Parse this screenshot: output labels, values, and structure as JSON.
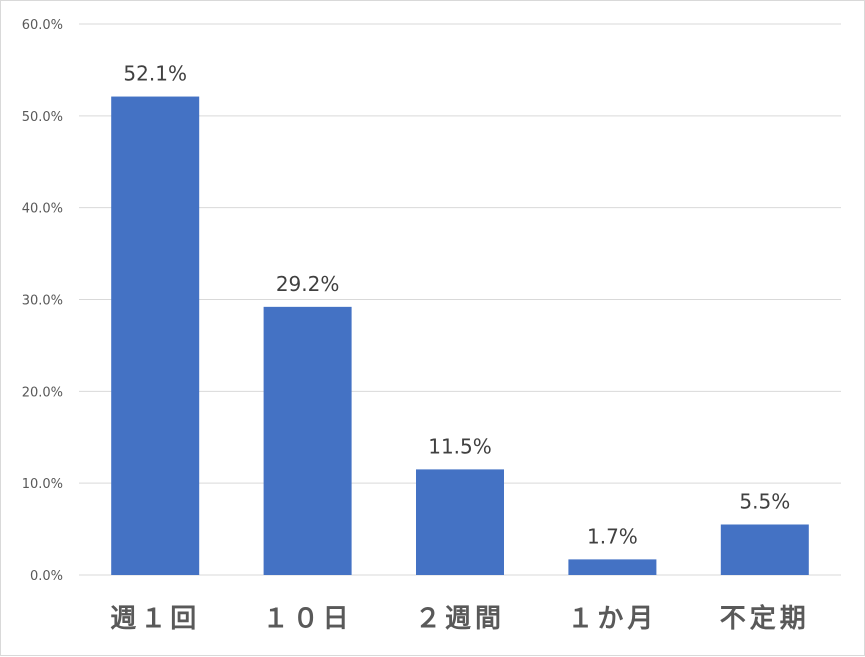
{
  "chart_data": {
    "type": "bar",
    "categories": [
      "週１回",
      "１０日",
      "２週間",
      "１か月",
      "不定期"
    ],
    "values": [
      52.1,
      29.2,
      11.5,
      1.7,
      5.5
    ],
    "value_labels": [
      "52.1%",
      "29.2%",
      "11.5%",
      "1.7%",
      "5.5%"
    ],
    "y_ticks": [
      "0.0%",
      "10.0%",
      "20.0%",
      "30.0%",
      "40.0%",
      "50.0%",
      "60.0%"
    ],
    "ylim": [
      0,
      60
    ],
    "title": "",
    "xlabel": "",
    "ylabel": "",
    "grid": true,
    "legend": "none",
    "bar_color": "#4472c4"
  }
}
